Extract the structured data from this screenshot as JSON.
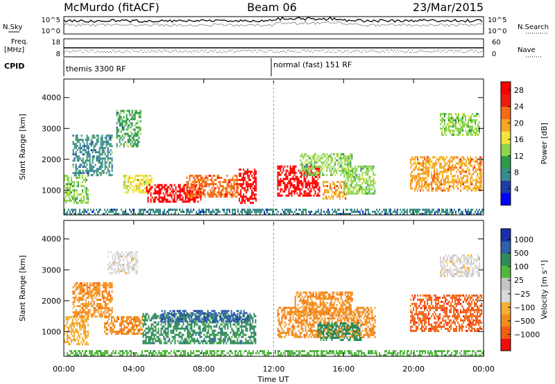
{
  "header": {
    "station": "McMurdo (fitACF)",
    "beam": "Beam 06",
    "date": "23/Mar/2015"
  },
  "top_strip": {
    "left_label": "N.Sky",
    "left_ticks": [
      "10^5",
      "10^0"
    ],
    "right_ticks": [
      "10^5",
      "10^0"
    ],
    "right_label": "N.Search"
  },
  "freq_strip": {
    "left_label_1": "Freq.",
    "left_label_2": "[MHz]",
    "left_ticks": [
      "18",
      "8"
    ],
    "right_ticks": [
      "60",
      "0"
    ],
    "right_label": "Nave"
  },
  "cpid": {
    "label": "CPID",
    "mode_1": "themis 3300 RF",
    "mode_2": "normal (fast) 151 RF"
  },
  "colors": {
    "power": [
      "#0000ff",
      "#1f3fa8",
      "#3b8c8c",
      "#2e9a4a",
      "#8ed64c",
      "#f5e53a",
      "#f5a623",
      "#f36b14",
      "#ee1c0e",
      "#ff0000"
    ],
    "velocity": [
      "#f20d0d",
      "#f25c13",
      "#f28c1c",
      "#f5b036",
      "#d9d9d9",
      "#c4c4c4",
      "#51b83c",
      "#2e8b57",
      "#2e5fa8",
      "#1a2fa8"
    ]
  },
  "chart_data": [
    {
      "type": "heatmap",
      "name": "power",
      "x_range_hours": [
        0,
        24
      ],
      "xticks": [
        "00:00",
        "04:00",
        "08:00",
        "12:00",
        "16:00",
        "20:00",
        "00:00"
      ],
      "ylabel": "Slant Range [km]",
      "yticks": [
        1000,
        2000,
        3000,
        4000
      ],
      "ylim": [
        200,
        4600
      ],
      "colorbar": {
        "label": "Power [dB]",
        "ticks": [
          4,
          8,
          12,
          16,
          20,
          24,
          28
        ],
        "range": [
          0,
          30
        ]
      },
      "regions": [
        {
          "t0": 0.0,
          "t1": 1.4,
          "r0": 600,
          "r1": 1500,
          "level": 12
        },
        {
          "t0": 0.5,
          "t1": 2.8,
          "r0": 1500,
          "r1": 2800,
          "level": 8
        },
        {
          "t0": 3.0,
          "t1": 4.4,
          "r0": 2400,
          "r1": 3600,
          "level": 10
        },
        {
          "t0": 3.4,
          "t1": 5.0,
          "r0": 900,
          "r1": 1500,
          "level": 16
        },
        {
          "t0": 4.7,
          "t1": 7.8,
          "r0": 600,
          "r1": 1200,
          "level": 28
        },
        {
          "t0": 7.0,
          "t1": 10.0,
          "r0": 800,
          "r1": 1500,
          "level": 22
        },
        {
          "t0": 10.0,
          "t1": 11.0,
          "r0": 600,
          "r1": 1700,
          "level": 28
        },
        {
          "t0": 12.2,
          "t1": 14.6,
          "r0": 800,
          "r1": 1800,
          "level": 28
        },
        {
          "t0": 13.5,
          "t1": 16.5,
          "r0": 1500,
          "r1": 2200,
          "level": 12
        },
        {
          "t0": 14.8,
          "t1": 16.2,
          "r0": 700,
          "r1": 1300,
          "level": 20
        },
        {
          "t0": 16.0,
          "t1": 17.8,
          "r0": 900,
          "r1": 1800,
          "level": 12
        },
        {
          "t0": 19.8,
          "t1": 23.9,
          "r0": 1000,
          "r1": 2100,
          "level": 20
        },
        {
          "t0": 21.5,
          "t1": 23.8,
          "r0": 2800,
          "r1": 3500,
          "level": 12
        },
        {
          "t0": 0.0,
          "t1": 24.0,
          "r0": 200,
          "r1": 400,
          "level": 6
        }
      ]
    },
    {
      "type": "heatmap",
      "name": "velocity",
      "x_range_hours": [
        0,
        24
      ],
      "xticks": [
        "00:00",
        "04:00",
        "08:00",
        "12:00",
        "16:00",
        "20:00",
        "00:00"
      ],
      "xlabel": "Time UT",
      "ylabel": "Slant Range [km]",
      "yticks": [
        1000,
        2000,
        3000,
        4000
      ],
      "ylim": [
        200,
        4600
      ],
      "colorbar": {
        "label": "Velocity [m s⁻¹]",
        "ticks": [
          "1000",
          "500",
          "100",
          "25",
          "−25",
          "−100",
          "−500",
          "−1000"
        ]
      },
      "regions": [
        {
          "t0": 0.0,
          "t1": 1.4,
          "r0": 600,
          "r1": 1500,
          "level": 3
        },
        {
          "t0": 0.5,
          "t1": 2.8,
          "r0": 1500,
          "r1": 2600,
          "level": 2
        },
        {
          "t0": 2.5,
          "t1": 4.2,
          "r0": 2900,
          "r1": 3600,
          "level": 4
        },
        {
          "t0": 2.3,
          "t1": 4.5,
          "r0": 900,
          "r1": 1500,
          "level": 2
        },
        {
          "t0": 4.5,
          "t1": 11.0,
          "r0": 600,
          "r1": 1600,
          "level": 7
        },
        {
          "t0": 5.5,
          "t1": 10.5,
          "r0": 1300,
          "r1": 1700,
          "level": 8
        },
        {
          "t0": 12.2,
          "t1": 17.8,
          "r0": 800,
          "r1": 1800,
          "level": 2
        },
        {
          "t0": 13.2,
          "t1": 16.5,
          "r0": 1500,
          "r1": 2300,
          "level": 2
        },
        {
          "t0": 14.5,
          "t1": 17.0,
          "r0": 700,
          "r1": 1300,
          "level": 7
        },
        {
          "t0": 19.8,
          "t1": 23.9,
          "r0": 1000,
          "r1": 2200,
          "level": 1
        },
        {
          "t0": 21.5,
          "t1": 23.8,
          "r0": 2800,
          "r1": 3500,
          "level": 4
        },
        {
          "t0": 0.0,
          "t1": 24.0,
          "r0": 200,
          "r1": 400,
          "level": 6
        }
      ]
    }
  ]
}
